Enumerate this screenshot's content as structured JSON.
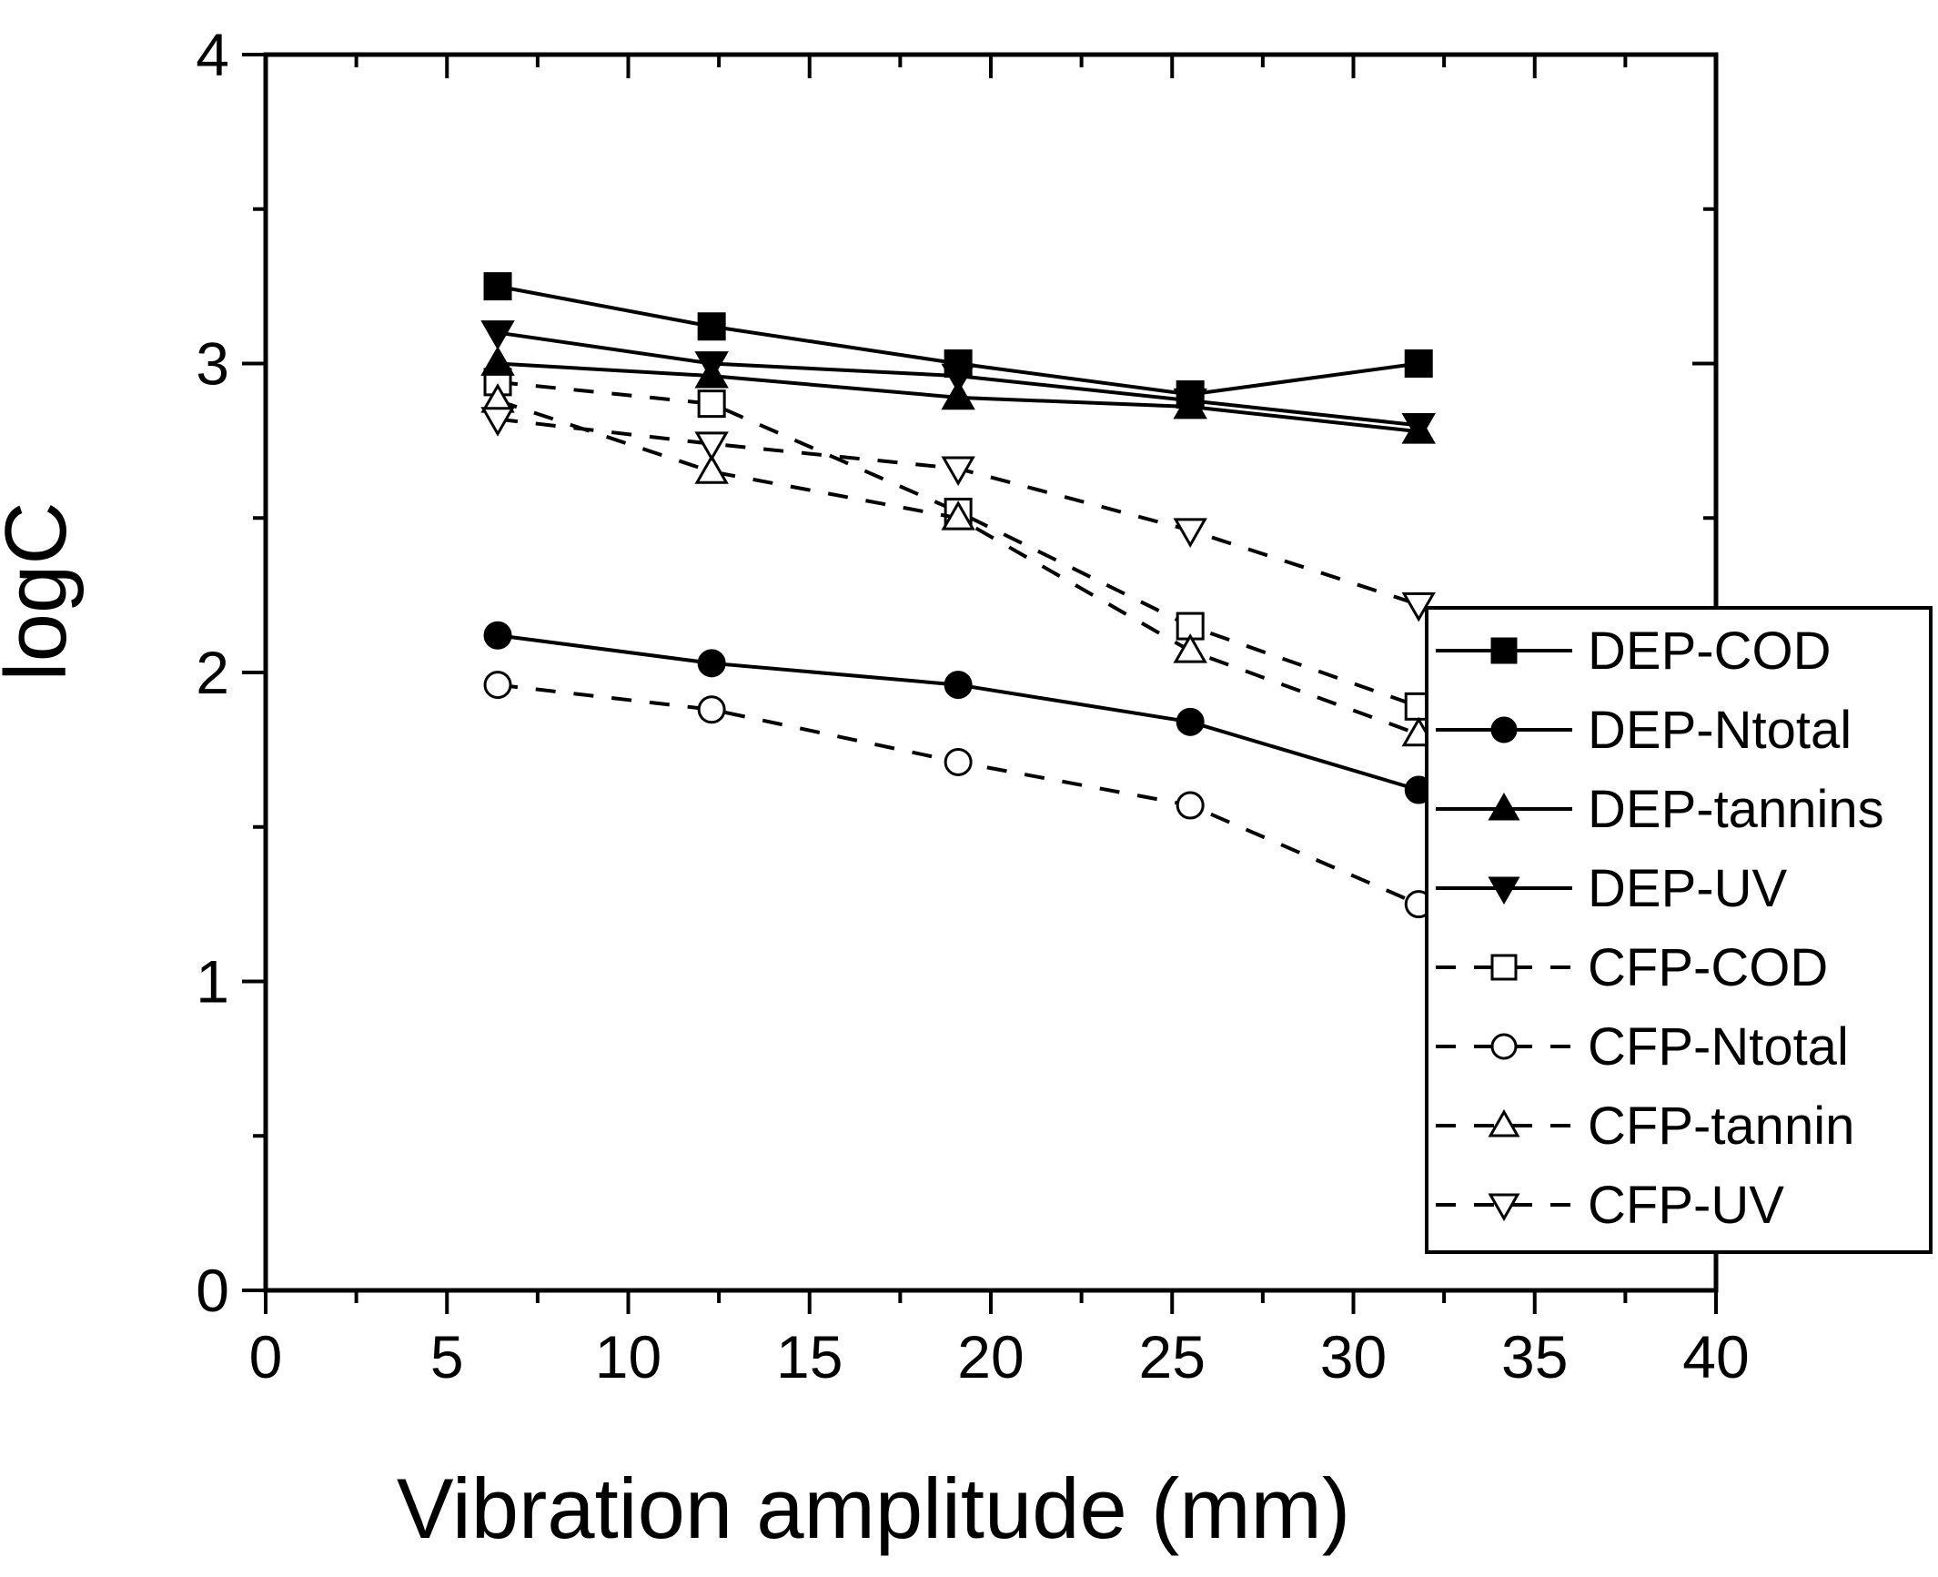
{
  "chart_data": {
    "type": "line",
    "title": "",
    "xlabel": "Vibration amplitude (mm)",
    "ylabel": "logC",
    "xlim": [
      0,
      40
    ],
    "ylim": [
      0,
      4
    ],
    "xticks": [
      0,
      5,
      10,
      15,
      20,
      25,
      30,
      35,
      40
    ],
    "yticks": [
      0,
      1,
      2,
      3,
      4
    ],
    "legend_position": "right",
    "series": [
      {
        "name": "DEP-COD",
        "marker": "square",
        "filled": true,
        "dashed": false,
        "x": [
          6.4,
          12.3,
          19.1,
          25.5,
          31.8
        ],
        "y": [
          3.25,
          3.12,
          3.0,
          2.9,
          3.0
        ]
      },
      {
        "name": "DEP-Ntotal",
        "marker": "circle",
        "filled": true,
        "dashed": false,
        "x": [
          6.4,
          12.3,
          19.1,
          25.5,
          31.8
        ],
        "y": [
          2.12,
          2.03,
          1.96,
          1.84,
          1.62
        ]
      },
      {
        "name": "DEP-tannins",
        "marker": "triangle-up",
        "filled": true,
        "dashed": false,
        "x": [
          6.4,
          12.3,
          19.1,
          25.5,
          31.8
        ],
        "y": [
          3.0,
          2.96,
          2.89,
          2.86,
          2.78
        ]
      },
      {
        "name": "DEP-UV",
        "marker": "triangle-down",
        "filled": true,
        "dashed": false,
        "x": [
          6.4,
          12.3,
          19.1,
          25.5,
          31.8
        ],
        "y": [
          3.1,
          3.0,
          2.96,
          2.88,
          2.8
        ]
      },
      {
        "name": "CFP-COD",
        "marker": "square",
        "filled": false,
        "dashed": true,
        "x": [
          6.4,
          12.3,
          19.1,
          25.5,
          31.8
        ],
        "y": [
          2.94,
          2.87,
          2.52,
          2.15,
          1.89
        ]
      },
      {
        "name": "CFP-Ntotal",
        "marker": "circle",
        "filled": false,
        "dashed": true,
        "x": [
          6.4,
          12.3,
          19.1,
          25.5,
          31.8
        ],
        "y": [
          1.96,
          1.88,
          1.71,
          1.57,
          1.25
        ]
      },
      {
        "name": "CFP-tannin",
        "marker": "triangle-up",
        "filled": false,
        "dashed": true,
        "x": [
          6.4,
          12.3,
          19.1,
          25.5,
          31.8
        ],
        "y": [
          2.88,
          2.65,
          2.5,
          2.07,
          1.8
        ]
      },
      {
        "name": "CFP-UV",
        "marker": "triangle-down",
        "filled": false,
        "dashed": true,
        "x": [
          6.4,
          12.3,
          19.1,
          25.5,
          31.8
        ],
        "y": [
          2.82,
          2.74,
          2.66,
          2.46,
          2.22
        ]
      }
    ]
  }
}
